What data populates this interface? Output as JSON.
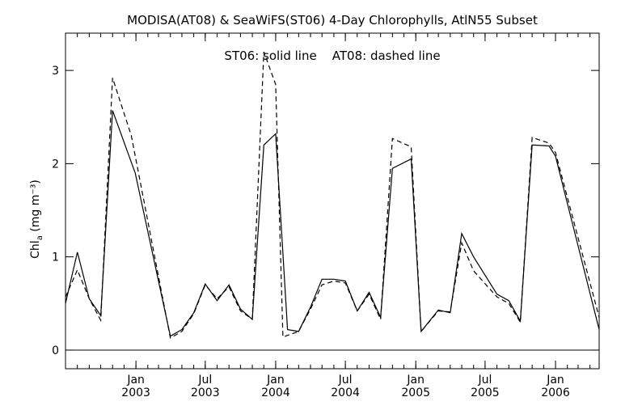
{
  "chart_data": {
    "type": "line",
    "title": "MODISA(AT08) & SeaWiFS(ST06) 4-Day Chlorophylls, AtlN55 Subset",
    "legend_text": "ST06: solid line    AT08: dashed line",
    "ylabel": {
      "main": "Chl",
      "sub": "a",
      "units": " (mg m⁻³)"
    },
    "ylim": [
      -0.2,
      3.4
    ],
    "yticks": [
      0,
      1,
      2,
      3
    ],
    "xlim": [
      "2002-07-01",
      "2006-04-25"
    ],
    "xticks": [
      {
        "x": "2003-01-01",
        "month": "Jan",
        "year": "2003"
      },
      {
        "x": "2003-07-01",
        "month": "Jul",
        "year": "2003"
      },
      {
        "x": "2004-01-01",
        "month": "Jan",
        "year": "2004"
      },
      {
        "x": "2004-07-01",
        "month": "Jul",
        "year": "2004"
      },
      {
        "x": "2005-01-01",
        "month": "Jan",
        "year": "2005"
      },
      {
        "x": "2005-07-01",
        "month": "Jul",
        "year": "2005"
      },
      {
        "x": "2006-01-01",
        "month": "Jan",
        "year": "2006"
      }
    ],
    "reference_line_y": 0,
    "series": [
      {
        "name": "ST06",
        "style": "solid",
        "points": [
          [
            "2002-07-01",
            0.5
          ],
          [
            "2002-08-01",
            1.05
          ],
          [
            "2002-09-01",
            0.55
          ],
          [
            "2002-10-01",
            0.37
          ],
          [
            "2002-11-01",
            2.57
          ],
          [
            "2002-12-30",
            1.9
          ],
          [
            "2003-04-01",
            0.15
          ],
          [
            "2003-05-01",
            0.22
          ],
          [
            "2003-06-01",
            0.4
          ],
          [
            "2003-07-01",
            0.71
          ],
          [
            "2003-08-01",
            0.53
          ],
          [
            "2003-09-01",
            0.7
          ],
          [
            "2003-10-01",
            0.44
          ],
          [
            "2003-11-01",
            0.33
          ],
          [
            "2003-12-01",
            2.2
          ],
          [
            "2004-01-01",
            2.32
          ],
          [
            "2004-02-01",
            0.22
          ],
          [
            "2004-03-01",
            0.2
          ],
          [
            "2004-04-01",
            0.46
          ],
          [
            "2004-05-01",
            0.76
          ],
          [
            "2004-06-01",
            0.76
          ],
          [
            "2004-07-01",
            0.74
          ],
          [
            "2004-08-01",
            0.42
          ],
          [
            "2004-09-01",
            0.62
          ],
          [
            "2004-10-01",
            0.35
          ],
          [
            "2004-11-01",
            1.95
          ],
          [
            "2004-12-20",
            2.05
          ],
          [
            "2005-01-15",
            0.2
          ],
          [
            "2005-03-01",
            0.43
          ],
          [
            "2005-04-01",
            0.4
          ],
          [
            "2005-05-01",
            1.25
          ],
          [
            "2005-06-01",
            1.0
          ],
          [
            "2005-08-01",
            0.6
          ],
          [
            "2005-09-01",
            0.53
          ],
          [
            "2005-10-01",
            0.31
          ],
          [
            "2005-11-01",
            2.2
          ],
          [
            "2005-12-15",
            2.19
          ],
          [
            "2006-01-01",
            2.08
          ],
          [
            "2006-04-25",
            0.22
          ]
        ]
      },
      {
        "name": "AT08",
        "style": "dashed",
        "points": [
          [
            "2002-07-01",
            0.57
          ],
          [
            "2002-08-01",
            0.86
          ],
          [
            "2002-09-01",
            0.55
          ],
          [
            "2002-10-01",
            0.32
          ],
          [
            "2002-11-01",
            2.92
          ],
          [
            "2002-12-20",
            2.3
          ],
          [
            "2003-04-01",
            0.13
          ],
          [
            "2003-05-01",
            0.2
          ],
          [
            "2003-06-01",
            0.39
          ],
          [
            "2003-07-01",
            0.7
          ],
          [
            "2003-08-01",
            0.55
          ],
          [
            "2003-09-01",
            0.68
          ],
          [
            "2003-10-01",
            0.42
          ],
          [
            "2003-11-01",
            0.33
          ],
          [
            "2003-12-01",
            3.2
          ],
          [
            "2004-01-01",
            2.85
          ],
          [
            "2004-01-20",
            0.14
          ],
          [
            "2004-03-01",
            0.2
          ],
          [
            "2004-04-01",
            0.44
          ],
          [
            "2004-05-01",
            0.7
          ],
          [
            "2004-06-01",
            0.74
          ],
          [
            "2004-07-01",
            0.72
          ],
          [
            "2004-08-01",
            0.42
          ],
          [
            "2004-09-01",
            0.6
          ],
          [
            "2004-10-01",
            0.33
          ],
          [
            "2004-11-01",
            2.27
          ],
          [
            "2004-12-20",
            2.18
          ],
          [
            "2005-01-15",
            0.2
          ],
          [
            "2005-03-01",
            0.42
          ],
          [
            "2005-04-01",
            0.41
          ],
          [
            "2005-05-01",
            1.15
          ],
          [
            "2005-06-01",
            0.85
          ],
          [
            "2005-08-01",
            0.57
          ],
          [
            "2005-09-01",
            0.5
          ],
          [
            "2005-10-01",
            0.3
          ],
          [
            "2005-11-01",
            2.28
          ],
          [
            "2005-12-15",
            2.22
          ],
          [
            "2006-01-01",
            2.12
          ],
          [
            "2006-04-25",
            0.35
          ]
        ]
      }
    ]
  }
}
